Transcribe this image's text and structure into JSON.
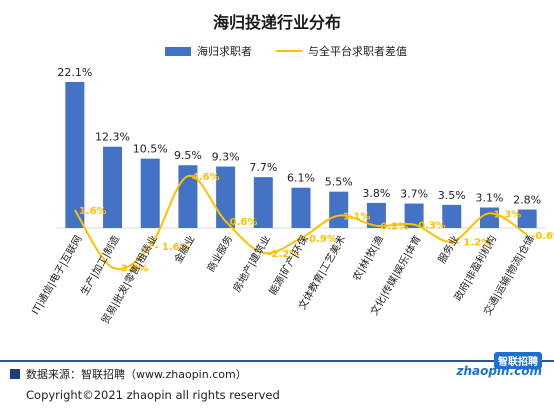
{
  "chart_data": {
    "type": "bar",
    "title": "海归投递行业分布",
    "legend": [
      "海归求职者",
      "与全平台求职者差值"
    ],
    "categories": [
      "IT|通信|电子|互联网",
      "生产|加工|制造",
      "贸易|批发|零售|租赁业",
      "金融业",
      "商业服务",
      "房地产|建筑业",
      "能源|矿产|环保",
      "文体教育|工艺美术",
      "农|林|牧|渔",
      "文化|传媒|娱乐|体育",
      "服务业",
      "政府|非盈利机构",
      "交通|运输|物流|仓储"
    ],
    "series": [
      {
        "name": "海归求职者",
        "type": "bar",
        "values": [
          22.1,
          12.3,
          10.5,
          9.5,
          9.3,
          7.7,
          6.1,
          5.5,
          3.8,
          3.7,
          3.5,
          3.1,
          2.8
        ],
        "labels": [
          "22.1%",
          "12.3%",
          "10.5%",
          "9.5%",
          "9.3%",
          "7.7%",
          "6.1%",
          "5.5%",
          "3.8%",
          "3.7%",
          "3.5%",
          "3.1%",
          "2.8%"
        ]
      },
      {
        "name": "与全平台求职者差值",
        "type": "line",
        "values": [
          1.6,
          -3.5,
          -1.6,
          4.6,
          0.6,
          -2.2,
          -0.9,
          1.1,
          0.2,
          0.3,
          -1.2,
          1.3,
          -0.6
        ],
        "labels": [
          "1.6%",
          "-3.5%",
          "- 1.6%",
          "4.6%",
          "0.6%",
          "-2.2%",
          "-0.9%",
          "1.1%",
          "0.2%",
          "0.3%",
          "- 1.2%",
          "1.3%",
          "-0.6%"
        ]
      }
    ],
    "colors": {
      "bar": "#4472C4",
      "line": "#FFC000"
    },
    "legend_position": "top"
  },
  "footer": {
    "source": "数据来源：智联招聘（www.zhaopin.com）",
    "copyright": "Copyright©2021 zhaopin all rights reserved"
  },
  "logo": {
    "cn": "智联招聘",
    "en": "zhaopin.com"
  }
}
